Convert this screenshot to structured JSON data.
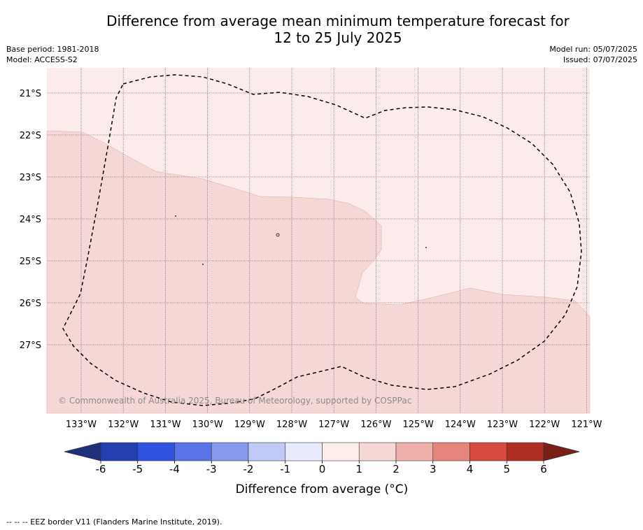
{
  "header": {
    "title_line1": "Difference from average mean minimum temperature forecast for",
    "title_line2": "12 to 25 July 2025",
    "base_period": "Base period: 1981-2018",
    "model": "Model: ACCESS-S2",
    "model_run": "Model run: 05/07/2025",
    "issued": "Issued: 07/07/2025"
  },
  "map": {
    "lat_labels": [
      "21°S",
      "22°S",
      "23°S",
      "24°S",
      "25°S",
      "26°S",
      "27°S"
    ],
    "lon_labels": [
      "133°W",
      "132°W",
      "131°W",
      "130°W",
      "129°W",
      "128°W",
      "127°W",
      "126°W",
      "125°W",
      "124°W",
      "123°W",
      "122°W",
      "121°W"
    ],
    "regions": [
      {
        "category": "0 to 1",
        "color": "#fbeceb"
      },
      {
        "category": "1 to 2",
        "color": "#f5d8d6"
      }
    ],
    "eez_border_style": "dashed",
    "copyright": "© Commonwealth of Australia 2025, Bureau of Meteorology, supported by COSPPac"
  },
  "colorbar": {
    "label": "Difference from average (°C)",
    "ticks": [
      "-6",
      "-5",
      "-4",
      "-3",
      "-2",
      "-1",
      "0",
      "1",
      "2",
      "3",
      "4",
      "5",
      "6"
    ],
    "colors": [
      "#243fb0",
      "#2f52df",
      "#5a73e6",
      "#8699ee",
      "#c1c9f6",
      "#e8ebfb",
      "#fdeeec",
      "#f5d8d6",
      "#eeb0aa",
      "#e6857d",
      "#d84a40",
      "#b02d24"
    ],
    "under_color": "#1e2f7c",
    "over_color": "#7a1f18"
  },
  "footnote": "-- -- -- EEZ border V11 (Flanders Marine Institute, 2019)."
}
